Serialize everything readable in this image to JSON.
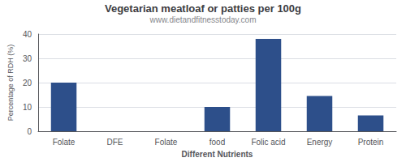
{
  "chart_data": {
    "type": "bar",
    "title": "Vegetarian meatloaf or patties per 100g",
    "subtitle": "www.dietandfitnesstoday.com",
    "xlabel": "Different Nutrients",
    "ylabel": "Percentage of RDH (%)",
    "categories": [
      "Folate",
      "DFE",
      "Folate",
      "food",
      "Folic acid",
      "Energy",
      "Protein"
    ],
    "values": [
      20,
      0,
      0,
      10,
      38,
      14.5,
      6.5
    ],
    "color": "#2d4f8a",
    "ylim": [
      0,
      40
    ],
    "yticks": [
      0,
      10,
      20,
      30,
      40
    ],
    "grid": true
  }
}
